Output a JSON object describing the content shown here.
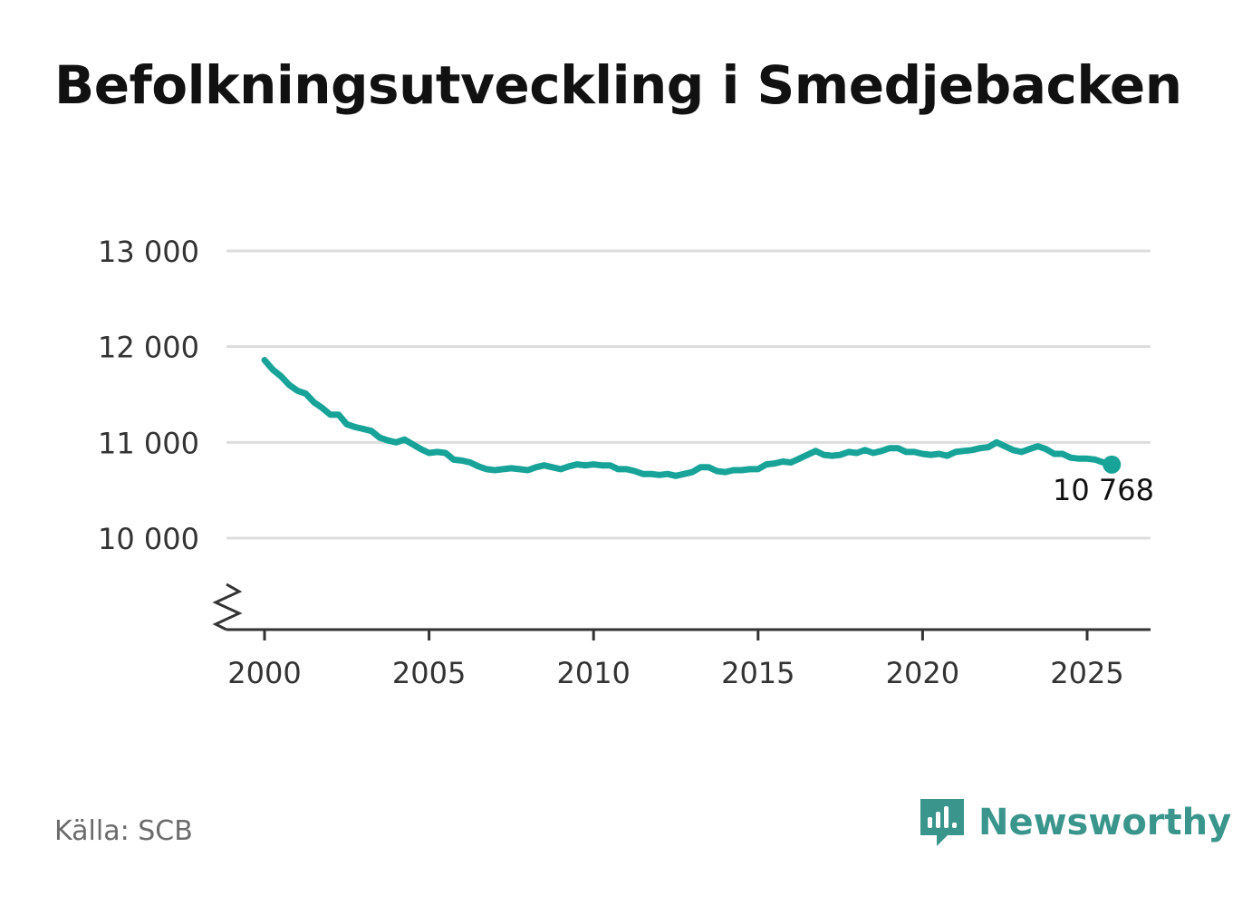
{
  "title": "Befolkningsutveckling i Smedjebacken",
  "source": "Källa: SCB",
  "brand": {
    "name": "Newsworthy",
    "icon": "newsworthy-logo-icon",
    "color": "#3a968c"
  },
  "chart_data": {
    "type": "line",
    "title": "Befolkningsutveckling i Smedjebacken",
    "xlabel": "",
    "ylabel": "",
    "xlim": [
      1999.8,
      2027
    ],
    "ylim": [
      9050,
      13000
    ],
    "x_ticks": [
      2000,
      2005,
      2010,
      2015,
      2020,
      2025
    ],
    "x_tick_labels": [
      "2000",
      "2005",
      "2010",
      "2015",
      "2020",
      "2025"
    ],
    "y_ticks": [
      10000,
      11000,
      12000,
      13000
    ],
    "y_tick_labels": [
      "10 000",
      "11 000",
      "12 000",
      "13 000"
    ],
    "axis_break": true,
    "grid": "horizontal",
    "line_color": "#17a398",
    "series": [
      {
        "x": [
          2000.0,
          2000.25,
          2000.5,
          2000.75,
          2001.0,
          2001.25,
          2001.5,
          2001.75,
          2002.0,
          2002.25,
          2002.5,
          2002.75,
          2003.0,
          2003.25,
          2003.5,
          2003.75,
          2004.0,
          2004.25,
          2004.5,
          2004.75,
          2005.0,
          2005.25,
          2005.5,
          2005.75,
          2006.0,
          2006.25,
          2006.5,
          2006.75,
          2007.0,
          2007.25,
          2007.5,
          2007.75,
          2008.0,
          2008.25,
          2008.5,
          2008.75,
          2009.0,
          2009.25,
          2009.5,
          2009.75,
          2010.0,
          2010.25,
          2010.5,
          2010.75,
          2011.0,
          2011.25,
          2011.5,
          2011.75,
          2012.0,
          2012.25,
          2012.5,
          2012.75,
          2013.0,
          2013.25,
          2013.5,
          2013.75,
          2014.0,
          2014.25,
          2014.5,
          2014.75,
          2015.0,
          2015.25,
          2015.5,
          2015.75,
          2016.0,
          2016.25,
          2016.5,
          2016.75,
          2017.0,
          2017.25,
          2017.5,
          2017.75,
          2018.0,
          2018.25,
          2018.5,
          2018.75,
          2019.0,
          2019.25,
          2019.5,
          2019.75,
          2020.0,
          2020.25,
          2020.5,
          2020.75,
          2021.0,
          2021.25,
          2021.5,
          2021.75,
          2022.0,
          2022.25,
          2022.5,
          2022.75,
          2023.0,
          2023.25,
          2023.5,
          2023.75,
          2024.0,
          2024.25,
          2024.5,
          2024.75,
          2025.0,
          2025.25,
          2025.5,
          2025.75
        ],
        "values": [
          11860,
          11760,
          11690,
          11600,
          11540,
          11510,
          11420,
          11360,
          11290,
          11290,
          11190,
          11160,
          11140,
          11120,
          11050,
          11020,
          11000,
          11030,
          10980,
          10930,
          10890,
          10900,
          10890,
          10820,
          10810,
          10790,
          10750,
          10720,
          10710,
          10720,
          10730,
          10720,
          10710,
          10740,
          10760,
          10740,
          10720,
          10750,
          10770,
          10760,
          10770,
          10760,
          10760,
          10720,
          10720,
          10700,
          10670,
          10670,
          10660,
          10670,
          10650,
          10670,
          10690,
          10740,
          10740,
          10700,
          10690,
          10710,
          10710,
          10720,
          10720,
          10770,
          10780,
          10800,
          10790,
          10830,
          10870,
          10910,
          10870,
          10860,
          10870,
          10900,
          10890,
          10920,
          10890,
          10910,
          10940,
          10940,
          10900,
          10900,
          10880,
          10870,
          10880,
          10860,
          10900,
          10910,
          10920,
          10940,
          10950,
          11000,
          10960,
          10920,
          10900,
          10930,
          10960,
          10930,
          10880,
          10880,
          10840,
          10830,
          10830,
          10820,
          10790,
          10768
        ]
      }
    ],
    "end_label": "10 768"
  }
}
